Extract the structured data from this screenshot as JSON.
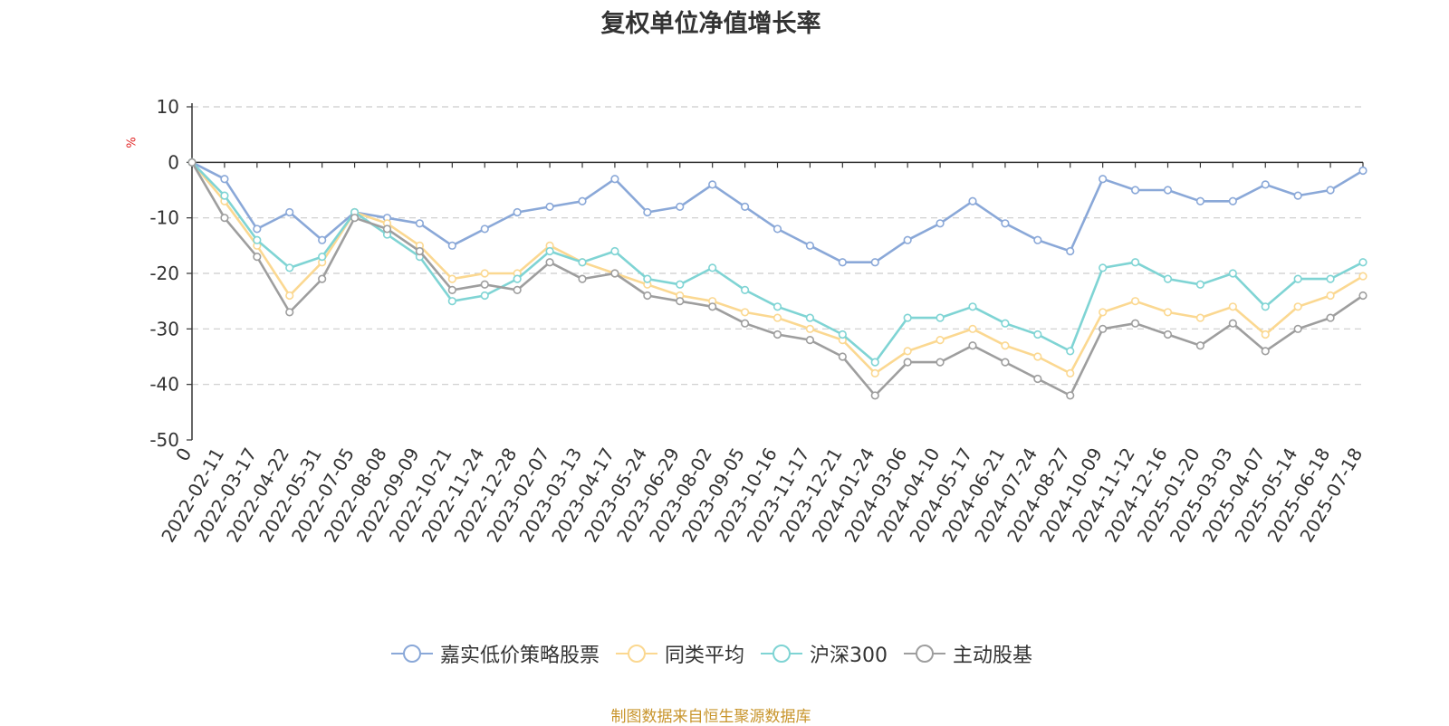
{
  "title": "复权单位净值增长率",
  "unit_label": "%",
  "source": "制图数据来自恒生聚源数据库",
  "chart_data": {
    "type": "line",
    "title": "复权单位净值增长率",
    "ylabel": "%",
    "ylim": [
      -50,
      10
    ],
    "yticks": [
      10,
      0,
      -10,
      -20,
      -30,
      -40,
      -50
    ],
    "grid": true,
    "legend_position": "bottom",
    "x_labels": [
      "0",
      "2022-02-11",
      "2022-03-17",
      "2022-04-22",
      "2022-05-31",
      "2022-07-05",
      "2022-08-08",
      "2022-09-09",
      "2022-10-21",
      "2022-11-24",
      "2022-12-28",
      "2023-02-07",
      "2023-03-13",
      "2023-04-17",
      "2023-05-24",
      "2023-06-29",
      "2023-08-02",
      "2023-09-05",
      "2023-10-16",
      "2023-11-17",
      "2023-12-21",
      "2024-01-24",
      "2024-03-06",
      "2024-04-10",
      "2024-05-17",
      "2024-06-21",
      "2024-07-24",
      "2024-08-27",
      "2024-10-09",
      "2024-11-12",
      "2024-12-16",
      "2025-01-20",
      "2025-03-03",
      "2025-04-07",
      "2025-05-14",
      "2025-06-18",
      "2025-07-18"
    ],
    "series": [
      {
        "name": "嘉实低价策略股票",
        "color": "#8aa8d8",
        "values": [
          0,
          -3,
          -12,
          -9,
          -14,
          -9,
          -10,
          -11,
          -15,
          -12,
          -9,
          -8,
          -7,
          -3,
          -9,
          -8,
          -4,
          -8,
          -12,
          -15,
          -18,
          -18,
          -14,
          -11,
          -7,
          -11,
          -14,
          -16,
          -3,
          -5,
          -5,
          -7,
          -7,
          -4,
          -6,
          -5,
          -1.5
        ]
      },
      {
        "name": "同类平均",
        "color": "#fbd891",
        "values": [
          0,
          -7,
          -15,
          -24,
          -18,
          -9,
          -11,
          -15,
          -21,
          -20,
          -20,
          -15,
          -18,
          -20,
          -22,
          -24,
          -25,
          -27,
          -28,
          -30,
          -32,
          -38,
          -34,
          -32,
          -30,
          -33,
          -35,
          -38,
          -27,
          -25,
          -27,
          -28,
          -26,
          -31,
          -26,
          -24,
          -20.5
        ]
      },
      {
        "name": "沪深300",
        "color": "#7fd4d4",
        "values": [
          0,
          -6,
          -14,
          -19,
          -17,
          -9,
          -13,
          -17,
          -25,
          -24,
          -21,
          -16,
          -18,
          -16,
          -21,
          -22,
          -19,
          -23,
          -26,
          -28,
          -31,
          -36,
          -28,
          -28,
          -26,
          -29,
          -31,
          -34,
          -19,
          -18,
          -21,
          -22,
          -20,
          -26,
          -21,
          -21,
          -18
        ]
      },
      {
        "name": "主动股基",
        "color": "#9e9e9e",
        "values": [
          0,
          -10,
          -17,
          -27,
          -21,
          -10,
          -12,
          -16,
          -23,
          -22,
          -23,
          -18,
          -21,
          -20,
          -24,
          -25,
          -26,
          -29,
          -31,
          -32,
          -35,
          -42,
          -36,
          -36,
          -33,
          -36,
          -39,
          -42,
          -30,
          -29,
          -31,
          -33,
          -29,
          -34,
          -30,
          -28,
          -24
        ]
      }
    ]
  }
}
